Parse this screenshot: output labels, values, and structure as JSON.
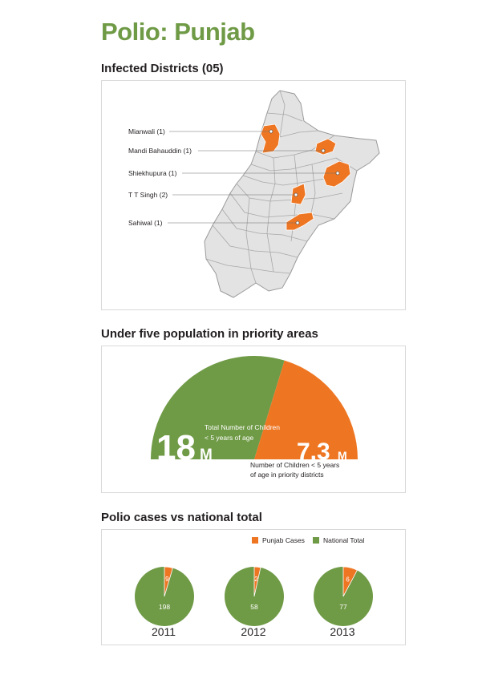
{
  "title": "Polio: Punjab",
  "sections": {
    "districts_heading": "Infected Districts (05)",
    "population_heading": "Under five population in priority areas",
    "cases_heading": "Polio cases vs national total"
  },
  "colors": {
    "orange": "#ee7623",
    "green": "#6f9a46",
    "map_gray": "#e3e3e3",
    "title_green": "#6f9a46"
  },
  "map": {
    "districts": [
      {
        "label": "Mianwali (1)"
      },
      {
        "label": "Mandi Bahauddin (1)"
      },
      {
        "label": "Shiekhupura (1)"
      },
      {
        "label": "T T Singh (2)"
      },
      {
        "label": "Sahiwal (1)"
      }
    ]
  },
  "chart_data": [
    {
      "type": "pie",
      "title": "Under five population in priority areas",
      "total": {
        "value": "18",
        "unit": "M",
        "caption_line1": "Total Number of Children",
        "caption_line2": "< 5 years of age"
      },
      "priority": {
        "value": "7.3",
        "unit": "M",
        "caption_line1": "Number of Children < 5 years",
        "caption_line2": "of age in priority districts"
      },
      "values": [
        18,
        7.3
      ]
    },
    {
      "type": "pie",
      "title": "Polio cases vs national total",
      "legend": [
        "Punjab Cases",
        "National Total"
      ],
      "legend_position": "top-right",
      "categories": [
        "2011",
        "2012",
        "2013"
      ],
      "series": [
        {
          "name": "Punjab Cases",
          "values": [
            9,
            2,
            6
          ]
        },
        {
          "name": "National Total",
          "values": [
            198,
            58,
            77
          ]
        }
      ]
    }
  ]
}
